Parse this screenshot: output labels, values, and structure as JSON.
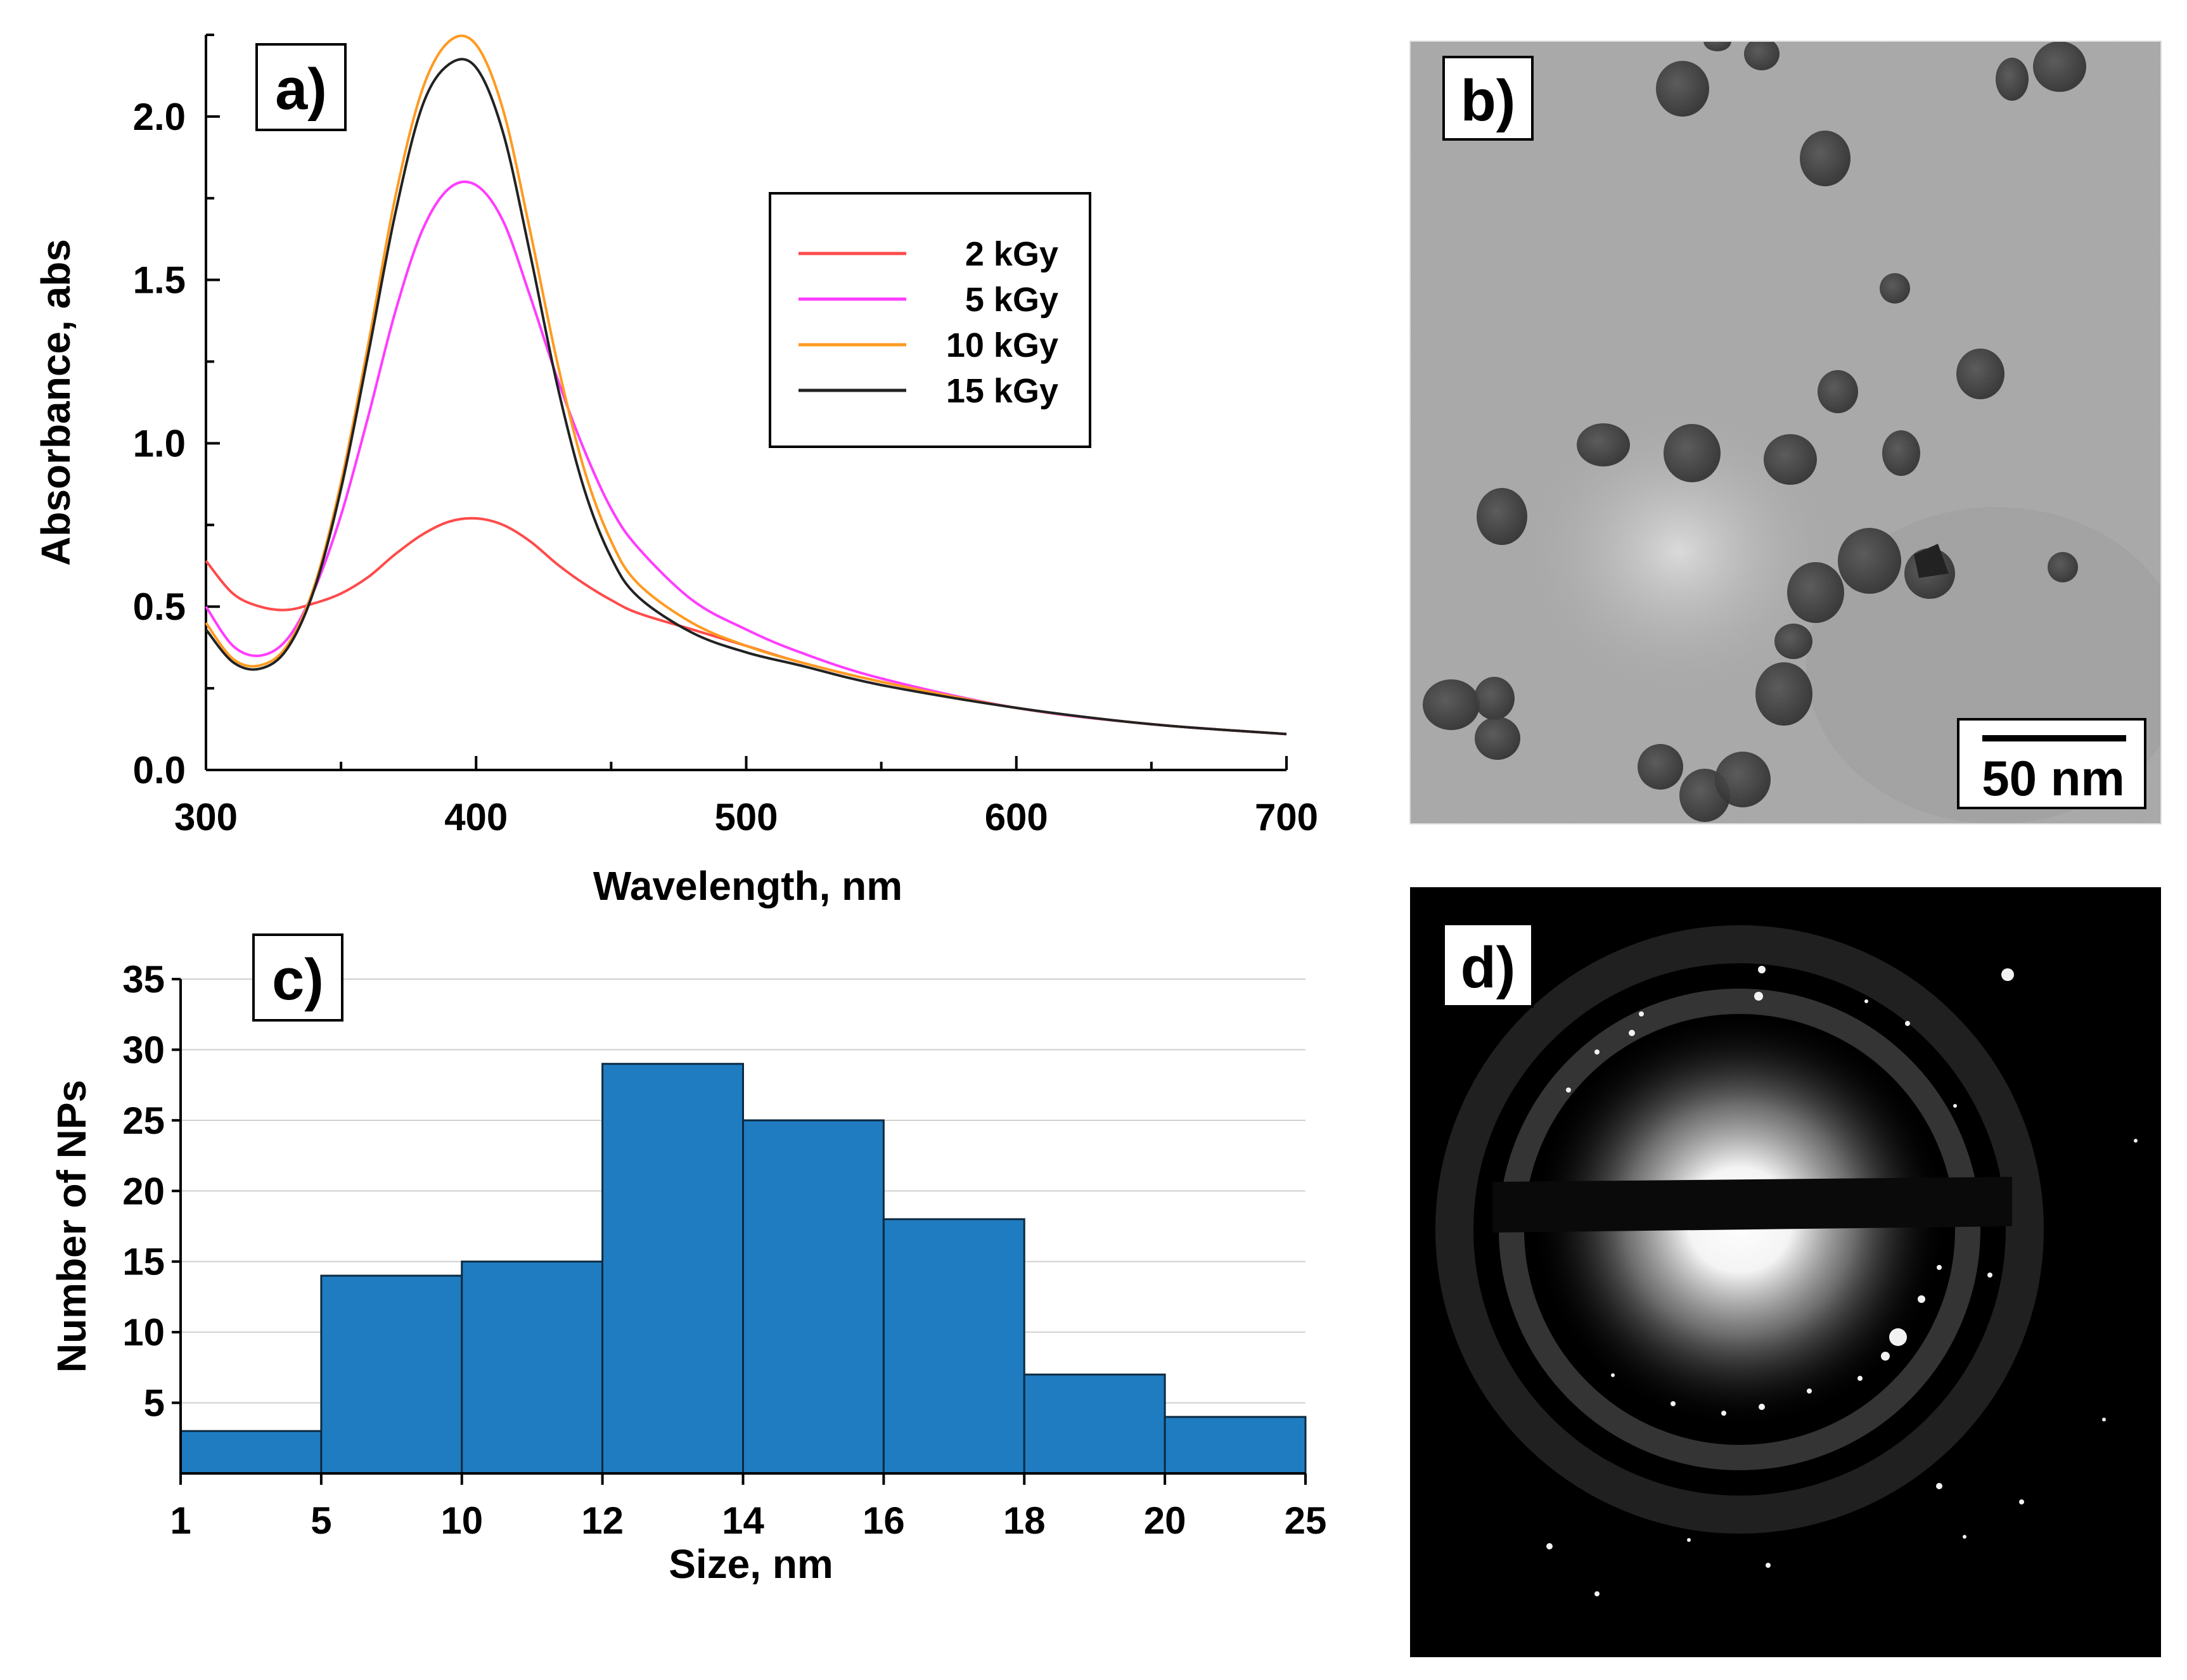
{
  "chart_data": [
    {
      "panel": "a)",
      "type": "line",
      "xlabel": "Wavelength, nm",
      "ylabel": "Absorbance, abs",
      "xlim": [
        300,
        700
      ],
      "ylim": [
        0,
        2.25
      ],
      "x_ticks": [
        "300",
        "400",
        "500",
        "600",
        "700"
      ],
      "y_ticks": [
        "0.0",
        "0.5",
        "1.0",
        "1.5",
        "2.0"
      ],
      "legend_position": "top-right",
      "series": [
        {
          "name": "2 kGy",
          "color": "#ff4a4a",
          "x": [
            300,
            310,
            320,
            330,
            340,
            350,
            360,
            370,
            380,
            390,
            400,
            410,
            420,
            430,
            440,
            450,
            460,
            480,
            500,
            520,
            550,
            600,
            650,
            700
          ],
          "y": [
            0.64,
            0.54,
            0.5,
            0.49,
            0.51,
            0.54,
            0.59,
            0.66,
            0.72,
            0.76,
            0.77,
            0.75,
            0.7,
            0.63,
            0.57,
            0.52,
            0.48,
            0.43,
            0.38,
            0.33,
            0.27,
            0.19,
            0.14,
            0.11
          ]
        },
        {
          "name": "5 kGy",
          "color": "#ff3cff",
          "x": [
            300,
            310,
            320,
            330,
            340,
            350,
            360,
            370,
            380,
            390,
            400,
            410,
            420,
            430,
            440,
            450,
            460,
            480,
            500,
            520,
            550,
            600,
            650,
            700
          ],
          "y": [
            0.5,
            0.38,
            0.35,
            0.4,
            0.55,
            0.78,
            1.08,
            1.4,
            1.65,
            1.78,
            1.79,
            1.68,
            1.45,
            1.2,
            0.98,
            0.8,
            0.68,
            0.52,
            0.43,
            0.36,
            0.28,
            0.19,
            0.14,
            0.11
          ]
        },
        {
          "name": "10 kGy",
          "color": "#ff9a20",
          "x": [
            300,
            310,
            320,
            330,
            340,
            350,
            360,
            370,
            380,
            390,
            400,
            410,
            420,
            430,
            440,
            450,
            460,
            480,
            500,
            520,
            550,
            600,
            650,
            700
          ],
          "y": [
            0.45,
            0.34,
            0.32,
            0.38,
            0.56,
            0.88,
            1.3,
            1.75,
            2.08,
            2.23,
            2.22,
            2.02,
            1.65,
            1.25,
            0.92,
            0.7,
            0.57,
            0.45,
            0.38,
            0.33,
            0.27,
            0.19,
            0.14,
            0.11
          ]
        },
        {
          "name": "15 kGy",
          "color": "#222222",
          "x": [
            300,
            310,
            320,
            330,
            340,
            350,
            360,
            370,
            380,
            390,
            400,
            410,
            420,
            430,
            440,
            450,
            460,
            480,
            500,
            520,
            550,
            600,
            650,
            700
          ],
          "y": [
            0.43,
            0.33,
            0.31,
            0.37,
            0.55,
            0.86,
            1.27,
            1.7,
            2.03,
            2.16,
            2.15,
            1.95,
            1.58,
            1.18,
            0.86,
            0.65,
            0.53,
            0.42,
            0.36,
            0.32,
            0.26,
            0.19,
            0.14,
            0.11
          ]
        }
      ]
    },
    {
      "panel": "c)",
      "type": "bar",
      "xlabel": "Size, nm",
      "ylabel": "Number of NPs",
      "ylim": [
        0,
        35
      ],
      "x_ticks": [
        "1",
        "5",
        "10",
        "12",
        "14",
        "16",
        "18",
        "20",
        "25"
      ],
      "y_ticks": [
        "5",
        "10",
        "15",
        "20",
        "25",
        "30",
        "35"
      ],
      "categories": [
        "1-5",
        "5-10",
        "10-12",
        "12-14",
        "14-16",
        "16-18",
        "18-20",
        "20-25"
      ],
      "values": [
        3,
        14,
        15,
        29,
        25,
        18,
        7,
        4
      ],
      "bar_color": "#1f7cc1"
    }
  ],
  "panels": {
    "a": {
      "label": "a)"
    },
    "b": {
      "label": "b)",
      "scale_bar": "50 nm"
    },
    "c": {
      "label": "c)"
    },
    "d": {
      "label": "d)"
    }
  }
}
